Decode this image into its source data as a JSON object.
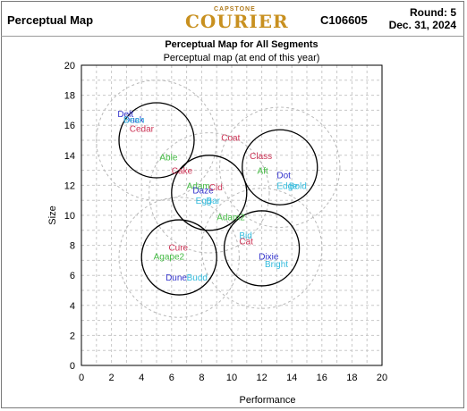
{
  "header": {
    "title": "Perceptual Map",
    "logo_top": "CAPSTONE",
    "logo": "COURIER",
    "code": "C106605",
    "round": "Round: 5",
    "date": "Dec. 31, 2024"
  },
  "chart_data": {
    "type": "scatter",
    "title": "Perceptual Map for All Segments",
    "subtitle": "Perceptual map (at end of this year)",
    "xlabel": "Performance",
    "ylabel": "Size",
    "xlim": [
      0,
      20
    ],
    "ylim": [
      0,
      20
    ],
    "xticks": [
      "0",
      "2",
      "4",
      "6",
      "8",
      "10",
      "12",
      "14",
      "16",
      "18",
      "20"
    ],
    "yticks": [
      "0",
      "2",
      "4",
      "6",
      "8",
      "10",
      "12",
      "14",
      "16",
      "18",
      "20"
    ],
    "grid": true,
    "segments": [
      {
        "cx": 5.0,
        "cy": 15.0,
        "r": 2.5,
        "outer_r": 4.0
      },
      {
        "cx": 8.5,
        "cy": 11.5,
        "r": 2.5,
        "outer_r": 4.0
      },
      {
        "cx": 13.2,
        "cy": 13.2,
        "r": 2.5,
        "outer_r": 4.0
      },
      {
        "cx": 6.5,
        "cy": 7.2,
        "r": 2.5,
        "outer_r": 4.0
      },
      {
        "cx": 12.0,
        "cy": 7.8,
        "r": 2.5,
        "outer_r": 4.0
      }
    ],
    "points": [
      {
        "label": "Delt",
        "x": 2.4,
        "y": 16.8,
        "color": "#3333cc"
      },
      {
        "label": "Duck",
        "x": 2.8,
        "y": 16.4,
        "color": "#3333cc"
      },
      {
        "label": "Bean",
        "x": 2.8,
        "y": 16.4,
        "color": "#33bbdd"
      },
      {
        "label": "Cedar",
        "x": 3.2,
        "y": 15.8,
        "color": "#cc3355"
      },
      {
        "label": "Coat",
        "x": 9.3,
        "y": 15.2,
        "color": "#cc3355"
      },
      {
        "label": "Class",
        "x": 11.2,
        "y": 14.0,
        "color": "#cc3355"
      },
      {
        "label": "Able",
        "x": 5.2,
        "y": 13.9,
        "color": "#44bb44"
      },
      {
        "label": "Aft",
        "x": 11.7,
        "y": 13.0,
        "color": "#44bb44"
      },
      {
        "label": "Dot",
        "x": 13.0,
        "y": 12.7,
        "color": "#3333cc"
      },
      {
        "label": "Cake",
        "x": 6.0,
        "y": 13.0,
        "color": "#cc3355"
      },
      {
        "label": "Edge",
        "x": 13.0,
        "y": 12.0,
        "color": "#33bbdd"
      },
      {
        "label": "Bold",
        "x": 13.8,
        "y": 12.0,
        "color": "#33bbdd"
      },
      {
        "label": "Adam",
        "x": 7.0,
        "y": 12.0,
        "color": "#44bb44"
      },
      {
        "label": "Daze",
        "x": 7.4,
        "y": 11.7,
        "color": "#3333cc"
      },
      {
        "label": "Cid",
        "x": 8.5,
        "y": 11.9,
        "color": "#cc3355"
      },
      {
        "label": "Egg",
        "x": 7.6,
        "y": 11.0,
        "color": "#33bbdd"
      },
      {
        "label": "Bar",
        "x": 8.3,
        "y": 11.0,
        "color": "#33bbdd"
      },
      {
        "label": "Adam2",
        "x": 9.0,
        "y": 9.9,
        "color": "#44bb44"
      },
      {
        "label": "Bid",
        "x": 10.5,
        "y": 8.7,
        "color": "#33bbdd"
      },
      {
        "label": "Cat",
        "x": 10.5,
        "y": 8.3,
        "color": "#cc3355"
      },
      {
        "label": "Cure",
        "x": 5.8,
        "y": 7.9,
        "color": "#cc3355"
      },
      {
        "label": "Agape2",
        "x": 4.8,
        "y": 7.3,
        "color": "#44bb44"
      },
      {
        "label": "Dixie",
        "x": 11.8,
        "y": 7.3,
        "color": "#3333cc"
      },
      {
        "label": "Bright",
        "x": 12.2,
        "y": 6.8,
        "color": "#33bbdd"
      },
      {
        "label": "Dune",
        "x": 5.6,
        "y": 5.9,
        "color": "#3333cc"
      },
      {
        "label": "Budd",
        "x": 7.0,
        "y": 5.9,
        "color": "#33bbdd"
      }
    ]
  }
}
